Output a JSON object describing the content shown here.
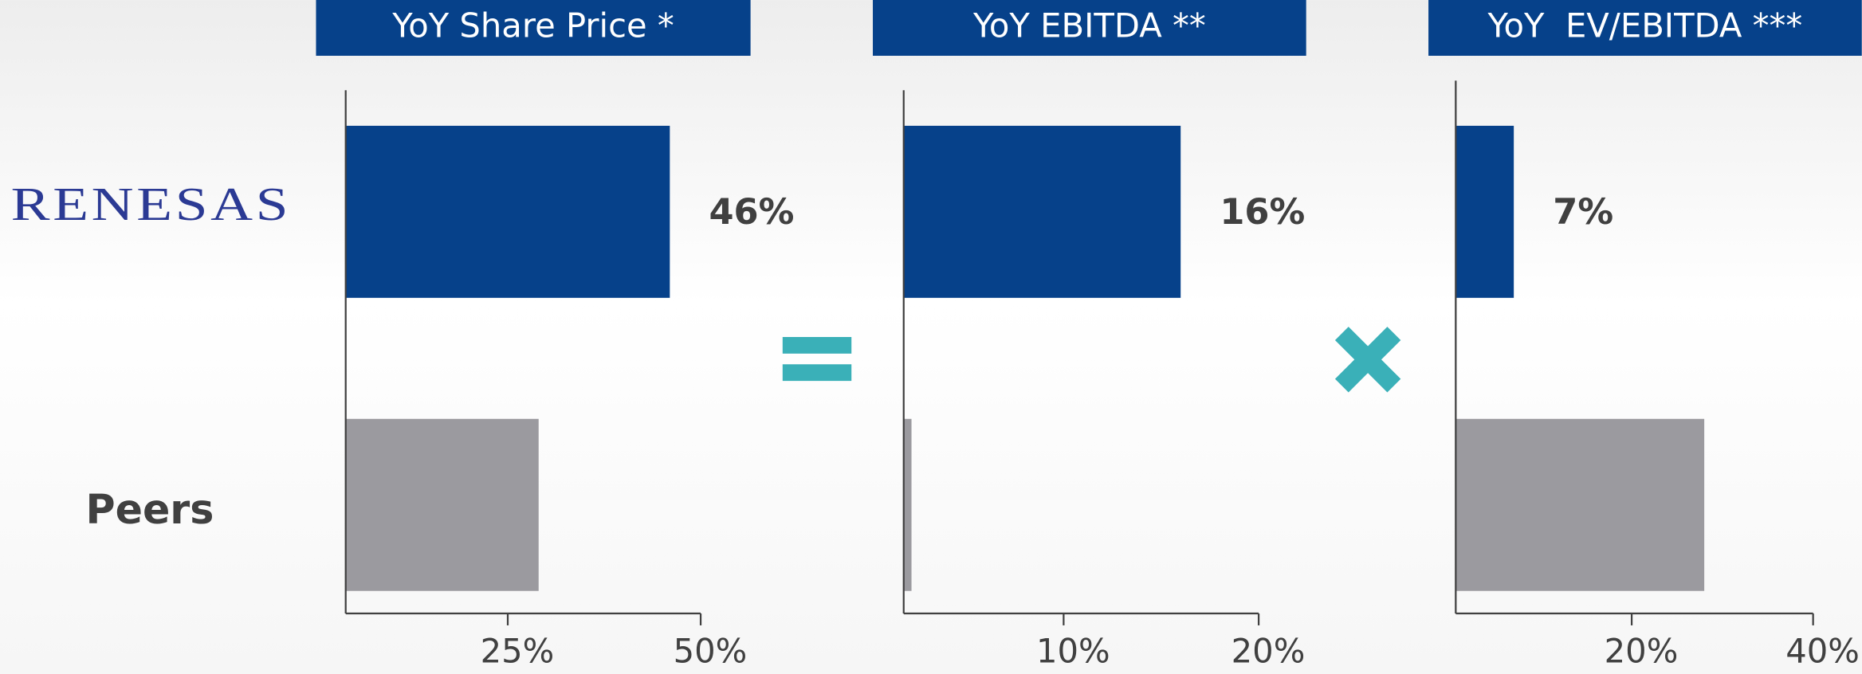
{
  "row_labels": [
    "RENESAS",
    "Peers"
  ],
  "chart_data": [
    {
      "type": "bar",
      "orientation": "horizontal",
      "title": "YoY Share Price *",
      "values": [
        46,
        29
      ],
      "value_labels": [
        "46%",
        null
      ],
      "colors": [
        "#06418a",
        "#9b9a9f"
      ],
      "xlim": [
        4,
        50
      ],
      "xticks": [
        {
          "value": 25,
          "label": "25%"
        },
        {
          "value": 50,
          "label": "50%"
        }
      ]
    },
    {
      "type": "bar",
      "orientation": "horizontal",
      "title": "YoY EBITDA **",
      "values": [
        16,
        2.2
      ],
      "value_labels": [
        "16%",
        null
      ],
      "colors": [
        "#06418a",
        "#9b9a9f"
      ],
      "xlim": [
        1.8,
        20
      ],
      "xticks": [
        {
          "value": 10,
          "label": "10%"
        },
        {
          "value": 20,
          "label": "20%"
        }
      ]
    },
    {
      "type": "bar",
      "orientation": "horizontal",
      "title": "YoY  EV/EBITDA ***",
      "values": [
        7,
        28
      ],
      "value_labels": [
        "7%",
        null
      ],
      "colors": [
        "#06418a",
        "#9b9a9f"
      ],
      "xlim": [
        0.6,
        40
      ],
      "xticks": [
        {
          "value": 20,
          "label": "20%"
        },
        {
          "value": 40,
          "label": "40%"
        }
      ]
    }
  ]
}
